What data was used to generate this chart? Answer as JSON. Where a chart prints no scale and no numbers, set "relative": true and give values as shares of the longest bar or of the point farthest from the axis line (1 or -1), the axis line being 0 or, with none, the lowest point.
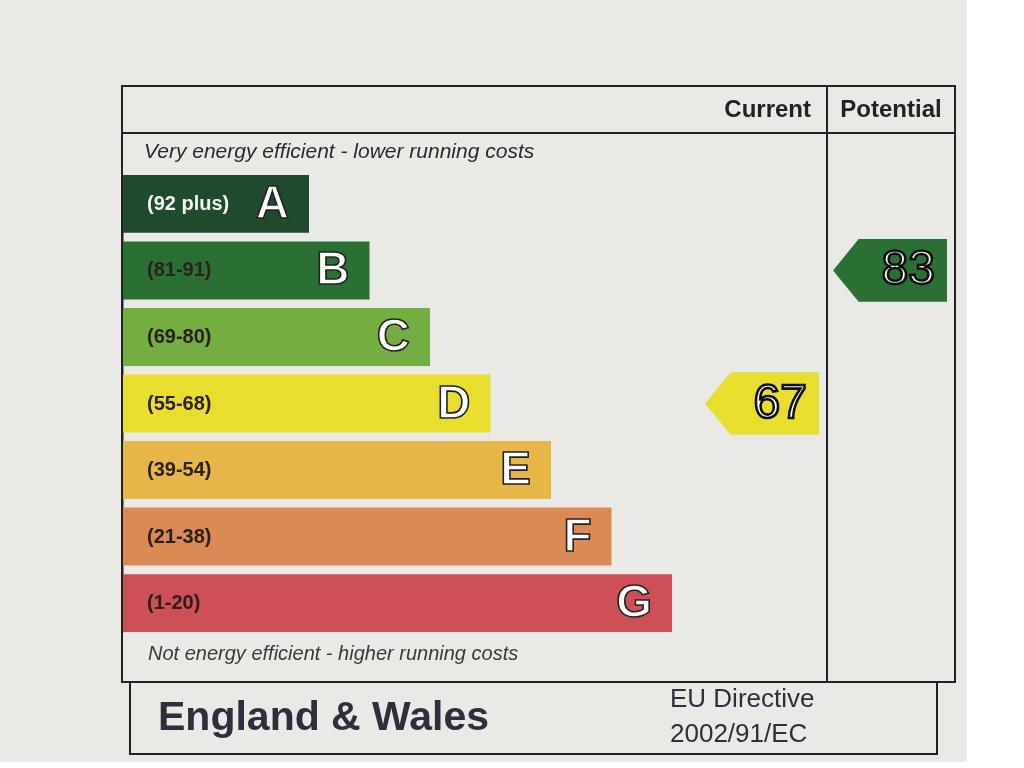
{
  "chart_data": {
    "type": "bar",
    "orientation": "horizontal",
    "relative": true,
    "categories": [
      "A",
      "B",
      "C",
      "D",
      "E",
      "F",
      "G"
    ],
    "values": [
      0.34,
      0.45,
      0.56,
      0.67,
      0.78,
      0.89,
      1
    ],
    "colors": [
      "#1f4a2c",
      "#2a7035",
      "#74ad41",
      "#e8de2e",
      "#e6b648",
      "#dc8a55",
      "#cd4f57"
    ],
    "annotations": [
      "Very energy efficient - lower running costs",
      "Not energy efficient - higher running costs",
      "Current",
      "Potential",
      "England & Wales",
      "EU Directive\n2002/91/EC",
      "67",
      "83",
      "(92 plus)",
      "(81-91)",
      "(69-80)",
      "(55-68)",
      "(39-54)",
      "(21-38)",
      "(1-20)"
    ]
  }
}
